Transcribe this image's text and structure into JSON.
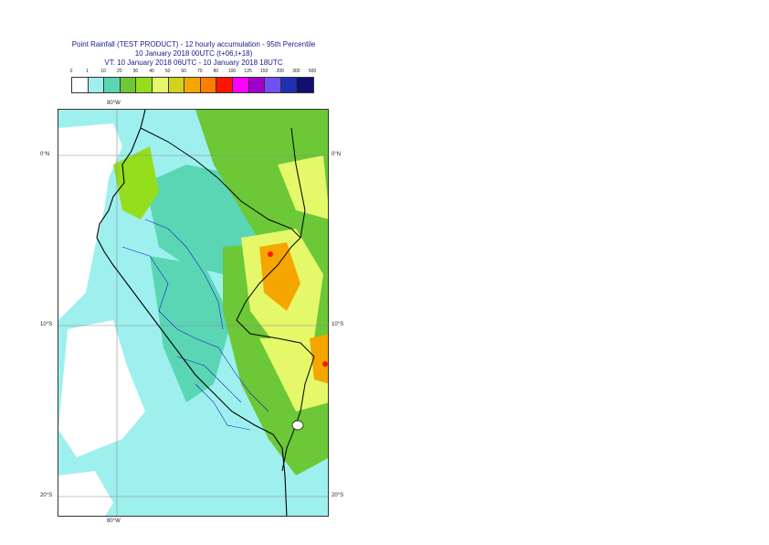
{
  "title": {
    "line1": "Point Rainfall (TEST PRODUCT) - 12 hourly accumulation - 95th Percentile",
    "line2": "10 January 2018 00UTC (t+06,t+18)",
    "line3": "VT: 10 January 2018 06UTC - 10 January 2018 18UTC"
  },
  "legend": {
    "labels": [
      "0",
      "1",
      "10",
      "20",
      "30",
      "40",
      "50",
      "60",
      "70",
      "80",
      "100",
      "125",
      "150",
      "200",
      "300",
      "500"
    ],
    "colors": [
      "#ffffff",
      "#9ef0ee",
      "#5ad6b4",
      "#6cc836",
      "#94de1e",
      "#e4f86a",
      "#d4d21a",
      "#f6a600",
      "#fe7e00",
      "#ff1400",
      "#ff00ff",
      "#a000c8",
      "#7050f0",
      "#2030b0",
      "#101070"
    ]
  },
  "axes": {
    "top_lon": "80°W",
    "bottom_lon": "80°W",
    "lat_left": [
      "0°N",
      "10°S",
      "20°S"
    ],
    "lat_right": [
      "0°N",
      "10°S",
      "20°S"
    ]
  },
  "map": {
    "region": "Peru",
    "background_color": "#9ef0ee",
    "ocean_color": "#ffffff",
    "border_color": "#000000",
    "province_color": "#1e1ec8"
  }
}
